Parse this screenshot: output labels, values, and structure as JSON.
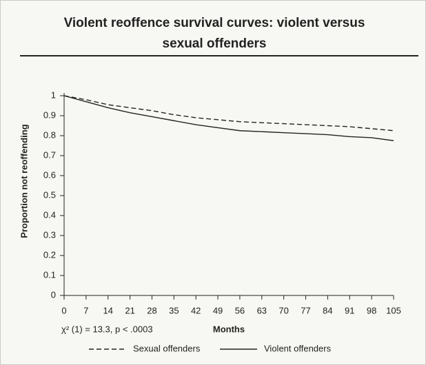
{
  "chart_data": {
    "type": "line",
    "title": "Violent reoffence survival curves: violent versus sexual offenders",
    "ylabel": "Proportion not reoffending",
    "xlabel": "Months",
    "annotation": "χ² (1) = 13.3, p < .0003",
    "x": [
      0,
      7,
      14,
      21,
      28,
      35,
      42,
      49,
      56,
      63,
      70,
      77,
      84,
      91,
      98,
      105
    ],
    "series": [
      {
        "name": "Sexual offenders",
        "color": "#222222",
        "dash": "dashed",
        "values": [
          1,
          0.98,
          0.955,
          0.94,
          0.925,
          0.905,
          0.89,
          0.88,
          0.87,
          0.865,
          0.86,
          0.855,
          0.85,
          0.845,
          0.835,
          0.825
        ]
      },
      {
        "name": "Violent offenders",
        "color": "#222222",
        "dash": "solid",
        "values": [
          1,
          0.97,
          0.94,
          0.915,
          0.895,
          0.875,
          0.855,
          0.84,
          0.825,
          0.82,
          0.815,
          0.81,
          0.805,
          0.795,
          0.79,
          0.775
        ]
      }
    ],
    "xlim": [
      0,
      105
    ],
    "xticks": [
      0,
      7,
      14,
      21,
      28,
      35,
      42,
      49,
      56,
      63,
      70,
      77,
      84,
      91,
      98,
      105
    ],
    "ylim": [
      0,
      1
    ],
    "yticks": [
      0,
      0.1,
      0.2,
      0.3,
      0.4,
      0.5,
      0.6,
      0.7,
      0.8,
      0.9,
      1
    ],
    "grid": false,
    "legend": "bottom"
  }
}
